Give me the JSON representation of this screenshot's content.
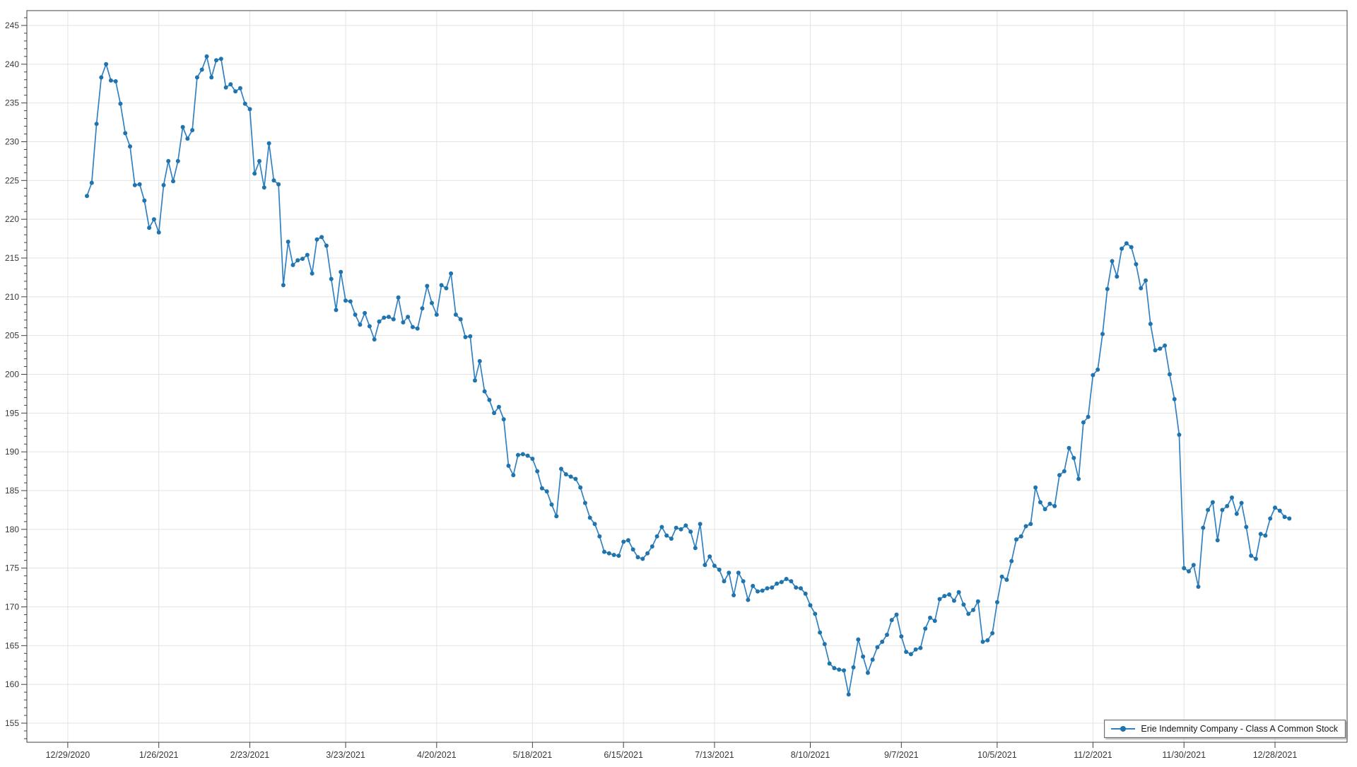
{
  "chart_data": {
    "type": "line",
    "title": "",
    "xlabel": "",
    "ylabel": "",
    "grid": true,
    "legend_position": "bottom-right",
    "ylim": [
      152.5,
      246.9
    ],
    "y_ticks": [
      245,
      240,
      235,
      230,
      225,
      220,
      215,
      210,
      205,
      200,
      195,
      190,
      185,
      180,
      175,
      170,
      165,
      160,
      155
    ],
    "y_minor_tick_step": 1,
    "x_ticks": [
      {
        "label": "12/29/2020",
        "index": -4
      },
      {
        "label": "1/26/2021",
        "index": 15
      },
      {
        "label": "2/23/2021",
        "index": 34
      },
      {
        "label": "3/23/2021",
        "index": 54
      },
      {
        "label": "4/20/2021",
        "index": 73
      },
      {
        "label": "5/18/2021",
        "index": 93
      },
      {
        "label": "6/15/2021",
        "index": 112
      },
      {
        "label": "7/13/2021",
        "index": 131
      },
      {
        "label": "8/10/2021",
        "index": 151
      },
      {
        "label": "9/7/2021",
        "index": 170
      },
      {
        "label": "10/5/2021",
        "index": 190
      },
      {
        "label": "11/2/2021",
        "index": 210
      },
      {
        "label": "11/30/2021",
        "index": 229
      },
      {
        "label": "12/28/2021",
        "index": 248
      }
    ],
    "series": [
      {
        "name": "Erie Indemnity Company - Class A Common Stock",
        "line_color": "#3181c3",
        "marker_color": "#1f74ae",
        "values": [
          223.0,
          224.7,
          232.3,
          238.3,
          240.0,
          237.9,
          237.8,
          234.9,
          231.1,
          229.4,
          224.4,
          224.5,
          222.4,
          218.9,
          220.0,
          218.3,
          224.4,
          227.5,
          224.9,
          227.5,
          231.9,
          230.4,
          231.5,
          238.3,
          239.3,
          241.0,
          238.3,
          240.5,
          240.7,
          237.0,
          237.4,
          236.5,
          236.9,
          234.9,
          234.2,
          225.9,
          227.5,
          224.1,
          229.8,
          225.0,
          224.5,
          211.5,
          217.1,
          214.1,
          214.7,
          214.9,
          215.4,
          213.0,
          217.4,
          217.7,
          216.6,
          212.3,
          208.3,
          213.2,
          209.5,
          209.4,
          207.7,
          206.4,
          207.9,
          206.2,
          204.5,
          206.8,
          207.3,
          207.4,
          207.1,
          209.9,
          206.7,
          207.4,
          206.1,
          205.9,
          208.5,
          211.4,
          209.2,
          207.7,
          211.5,
          211.1,
          213.0,
          207.7,
          207.1,
          204.8,
          204.9,
          199.2,
          201.7,
          197.8,
          196.7,
          195.0,
          195.8,
          194.2,
          188.2,
          187.0,
          189.6,
          189.7,
          189.5,
          189.1,
          187.5,
          185.3,
          184.9,
          183.2,
          181.7,
          187.8,
          187.1,
          186.8,
          186.5,
          185.4,
          183.4,
          181.5,
          180.7,
          179.1,
          177.1,
          176.9,
          176.7,
          176.6,
          178.4,
          178.6,
          177.4,
          176.4,
          176.2,
          176.9,
          177.8,
          179.1,
          180.3,
          179.2,
          178.8,
          180.2,
          180.0,
          180.5,
          179.7,
          177.6,
          180.7,
          175.4,
          176.5,
          175.3,
          174.8,
          173.3,
          174.4,
          171.5,
          174.4,
          173.3,
          170.9,
          172.7,
          172.0,
          172.1,
          172.4,
          172.5,
          173.0,
          173.2,
          173.6,
          173.3,
          172.5,
          172.4,
          171.7,
          170.2,
          169.1,
          166.7,
          165.2,
          162.7,
          162.1,
          161.9,
          161.8,
          158.7,
          162.2,
          165.8,
          163.6,
          161.5,
          163.2,
          164.8,
          165.5,
          166.4,
          168.3,
          169.0,
          166.2,
          164.2,
          163.9,
          164.5,
          164.7,
          167.2,
          168.6,
          168.2,
          171.0,
          171.4,
          171.6,
          170.8,
          171.9,
          170.3,
          169.1,
          169.6,
          170.7,
          165.5,
          165.7,
          166.6,
          170.6,
          173.9,
          173.5,
          175.9,
          178.7,
          179.1,
          180.4,
          180.7,
          185.4,
          183.5,
          182.6,
          183.3,
          183.0,
          187.0,
          187.5,
          190.5,
          189.2,
          186.5,
          193.8,
          194.5,
          199.9,
          200.6,
          205.2,
          211.0,
          214.6,
          212.6,
          216.2,
          216.9,
          216.4,
          214.2,
          211.1,
          212.1,
          206.5,
          203.1,
          203.3,
          203.7,
          200.0,
          196.8,
          192.2,
          175.0,
          174.6,
          175.4,
          172.6,
          180.2,
          182.5,
          183.5,
          178.6,
          182.5,
          183.0,
          184.1,
          182.0,
          183.4,
          180.3,
          176.6,
          176.2,
          179.4,
          179.2,
          181.4,
          182.8,
          182.4,
          181.6,
          181.4
        ]
      }
    ]
  },
  "legend": {
    "label": "Erie Indemnity Company - Class A Common Stock"
  },
  "colors": {
    "background": "#ffffff",
    "grid": "#e3e3e3",
    "axis": "#404040",
    "tick_text": "#383838",
    "line": "#3181c3",
    "marker": "#1f74ae"
  }
}
